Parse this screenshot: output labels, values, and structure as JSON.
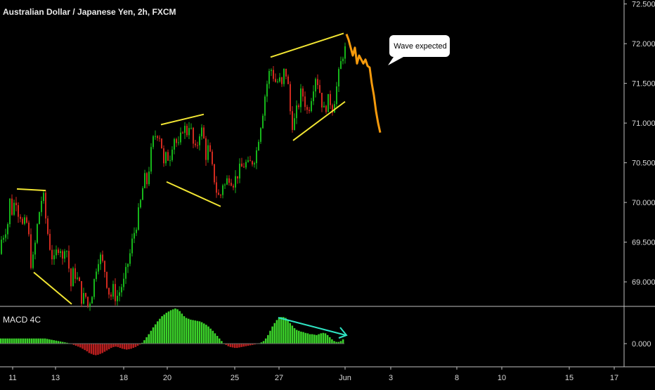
{
  "title": "Australian Dollar / Japanese Yen, 2h, FXCM",
  "macd_label": "MACD 4C",
  "callout": "Wave expected",
  "colors": {
    "background": "#000000",
    "up": "#16b51a",
    "down": "#d12a1f",
    "projection": "#f59a0c",
    "trendline": "#f2e633",
    "divergence": "#2fe3c2",
    "macd_up": "#3bd22a",
    "macd_down": "#b81e1e",
    "grid_text": "#d8d8d8"
  },
  "chart_data": [
    {
      "type": "candlestick",
      "title": "Australian Dollar / Japanese Yen, 2h, FXCM",
      "ylim": [
        68.7,
        72.55
      ],
      "y_ticks": [
        "72.500",
        "72.000",
        "71.500",
        "71.000",
        "70.500",
        "70.000",
        "69.500",
        "69.000"
      ],
      "x_ticks": [
        "11",
        "13",
        "18",
        "20",
        "25",
        "27",
        "Jun",
        "3",
        "8",
        "10",
        "15",
        "17"
      ],
      "price_path": [
        [
          0,
          69.35
        ],
        [
          3,
          69.55
        ],
        [
          6,
          69.5
        ],
        [
          8,
          69.7
        ],
        [
          12,
          69.65
        ],
        [
          16,
          70.02
        ],
        [
          20,
          69.85
        ],
        [
          24,
          70.12
        ],
        [
          27,
          69.9
        ],
        [
          31,
          69.85
        ],
        [
          35,
          69.65
        ],
        [
          39,
          69.8
        ],
        [
          43,
          69.55
        ],
        [
          47,
          69.15
        ],
        [
          51,
          69.4
        ],
        [
          55,
          69.7
        ],
        [
          59,
          69.95
        ],
        [
          63,
          70.12
        ],
        [
          67,
          69.8
        ],
        [
          71,
          69.55
        ],
        [
          75,
          69.35
        ],
        [
          79,
          69.25
        ],
        [
          83,
          69.4
        ],
        [
          87,
          69.5
        ],
        [
          91,
          69.25
        ],
        [
          95,
          69.55
        ],
        [
          99,
          69.25
        ],
        [
          103,
          68.95
        ],
        [
          107,
          69.15
        ],
        [
          111,
          69.05
        ],
        [
          115,
          68.95
        ],
        [
          119,
          68.75
        ],
        [
          123,
          68.85
        ],
        [
          127,
          68.7
        ],
        [
          131,
          68.8
        ],
        [
          135,
          68.95
        ],
        [
          139,
          69.2
        ],
        [
          143,
          69.35
        ],
        [
          147,
          69.25
        ],
        [
          151,
          69.15
        ],
        [
          155,
          68.95
        ],
        [
          159,
          68.8
        ],
        [
          163,
          68.9
        ],
        [
          167,
          68.8
        ],
        [
          171,
          68.85
        ],
        [
          175,
          68.95
        ],
        [
          179,
          69.0
        ],
        [
          183,
          69.2
        ],
        [
          187,
          69.35
        ],
        [
          191,
          69.55
        ],
        [
          195,
          69.7
        ],
        [
          199,
          69.85
        ],
        [
          203,
          70.05
        ],
        [
          207,
          70.3
        ],
        [
          211,
          70.25
        ],
        [
          215,
          70.5
        ],
        [
          219,
          70.75
        ],
        [
          223,
          70.85
        ],
        [
          227,
          70.9
        ],
        [
          231,
          70.8
        ],
        [
          235,
          70.45
        ],
        [
          239,
          70.6
        ],
        [
          243,
          70.55
        ],
        [
          247,
          70.75
        ],
        [
          251,
          70.85
        ],
        [
          255,
          70.65
        ],
        [
          259,
          70.8
        ],
        [
          263,
          71.0
        ],
        [
          267,
          70.85
        ],
        [
          271,
          71.0
        ],
        [
          275,
          70.85
        ],
        [
          279,
          70.6
        ],
        [
          283,
          70.75
        ],
        [
          287,
          70.95
        ],
        [
          291,
          70.85
        ],
        [
          295,
          70.6
        ],
        [
          299,
          70.7
        ],
        [
          303,
          70.45
        ],
        [
          307,
          70.3
        ],
        [
          311,
          70.1
        ],
        [
          315,
          70.05
        ],
        [
          319,
          70.25
        ],
        [
          323,
          70.2
        ],
        [
          327,
          70.35
        ],
        [
          331,
          70.3
        ],
        [
          335,
          70.25
        ],
        [
          339,
          70.35
        ],
        [
          343,
          70.4
        ],
        [
          347,
          70.45
        ],
        [
          351,
          70.5
        ],
        [
          355,
          70.45
        ],
        [
          359,
          70.5
        ],
        [
          363,
          70.55
        ],
        [
          367,
          70.65
        ],
        [
          371,
          70.9
        ],
        [
          375,
          71.1
        ],
        [
          379,
          71.35
        ],
        [
          383,
          71.55
        ],
        [
          387,
          71.7
        ],
        [
          391,
          71.6
        ],
        [
          395,
          71.5
        ],
        [
          399,
          71.55
        ],
        [
          403,
          71.45
        ],
        [
          407,
          71.7
        ],
        [
          411,
          71.55
        ],
        [
          415,
          71.15
        ],
        [
          419,
          70.95
        ],
        [
          423,
          71.1
        ],
        [
          427,
          71.25
        ],
        [
          431,
          71.4
        ],
        [
          435,
          71.3
        ],
        [
          439,
          71.15
        ],
        [
          443,
          71.25
        ],
        [
          447,
          71.45
        ],
        [
          451,
          71.6
        ],
        [
          455,
          71.5
        ],
        [
          459,
          71.3
        ],
        [
          463,
          71.15
        ],
        [
          467,
          71.25
        ],
        [
          471,
          71.3
        ],
        [
          475,
          71.2
        ],
        [
          479,
          71.35
        ],
        [
          483,
          71.55
        ],
        [
          487,
          71.75
        ],
        [
          491,
          71.92
        ]
      ],
      "projection_path": [
        [
          493,
          72.12
        ],
        [
          496,
          72.05
        ],
        [
          499,
          71.95
        ],
        [
          502,
          71.85
        ],
        [
          505,
          71.95
        ],
        [
          508,
          71.75
        ],
        [
          511,
          71.85
        ],
        [
          514,
          71.8
        ],
        [
          517,
          71.75
        ],
        [
          520,
          71.8
        ],
        [
          523,
          71.72
        ],
        [
          526,
          71.7
        ],
        [
          529,
          71.5
        ],
        [
          532,
          71.35
        ],
        [
          535,
          71.15
        ],
        [
          538,
          71.0
        ],
        [
          541,
          70.88
        ]
      ],
      "trendlines": [
        [
          [
            24,
            70.17
          ],
          [
            65,
            70.15
          ]
        ],
        [
          [
            48,
            69.12
          ],
          [
            102,
            68.72
          ]
        ],
        [
          [
            229,
            70.98
          ],
          [
            290,
            71.11
          ]
        ],
        [
          [
            237,
            70.26
          ],
          [
            314,
            69.95
          ]
        ],
        [
          [
            385,
            71.83
          ],
          [
            489,
            72.13
          ]
        ],
        [
          [
            417,
            70.78
          ],
          [
            491,
            71.27
          ]
        ]
      ]
    },
    {
      "type": "histogram",
      "title": "MACD 4C",
      "y_ticks": [
        "0.000"
      ],
      "values": [
        0.12,
        0.12,
        0.12,
        0.12,
        0.12,
        0.12,
        0.12,
        0.12,
        0.12,
        0.12,
        0.12,
        0.12,
        0.12,
        0.12,
        0.12,
        0.12,
        0.12,
        0.12,
        0.12,
        0.12,
        0.12,
        0.11,
        0.1,
        0.09,
        0.08,
        0.07,
        0.06,
        0.05,
        0.04,
        0.03,
        0.02,
        0.01,
        -0.01,
        -0.03,
        -0.05,
        -0.07,
        -0.09,
        -0.12,
        -0.15,
        -0.18,
        -0.22,
        -0.24,
        -0.26,
        -0.27,
        -0.26,
        -0.24,
        -0.22,
        -0.19,
        -0.16,
        -0.13,
        -0.1,
        -0.08,
        -0.07,
        -0.08,
        -0.1,
        -0.12,
        -0.13,
        -0.14,
        -0.13,
        -0.12,
        -0.1,
        -0.08,
        -0.05,
        -0.02,
        0.02,
        0.08,
        0.15,
        0.22,
        0.3,
        0.38,
        0.45,
        0.52,
        0.58,
        0.64,
        0.68,
        0.72,
        0.75,
        0.78,
        0.8,
        0.82,
        0.8,
        0.76,
        0.7,
        0.64,
        0.6,
        0.58,
        0.56,
        0.55,
        0.54,
        0.53,
        0.52,
        0.5,
        0.47,
        0.44,
        0.4,
        0.35,
        0.3,
        0.24,
        0.18,
        0.12,
        0.06,
        0.01,
        -0.03,
        -0.06,
        -0.08,
        -0.09,
        -0.1,
        -0.1,
        -0.09,
        -0.08,
        -0.07,
        -0.06,
        -0.05,
        -0.04,
        -0.03,
        -0.02,
        -0.01,
        0.01,
        0.03,
        0.06,
        0.12,
        0.2,
        0.3,
        0.4,
        0.48,
        0.55,
        0.6,
        0.62,
        0.62,
        0.6,
        0.55,
        0.48,
        0.42,
        0.36,
        0.32,
        0.3,
        0.28,
        0.27,
        0.25,
        0.24,
        0.22,
        0.22,
        0.21,
        0.2,
        0.22,
        0.24,
        0.25,
        0.24,
        0.2,
        0.15,
        0.1,
        0.06,
        0.04,
        0.04,
        0.06,
        0.1
      ]
    }
  ]
}
